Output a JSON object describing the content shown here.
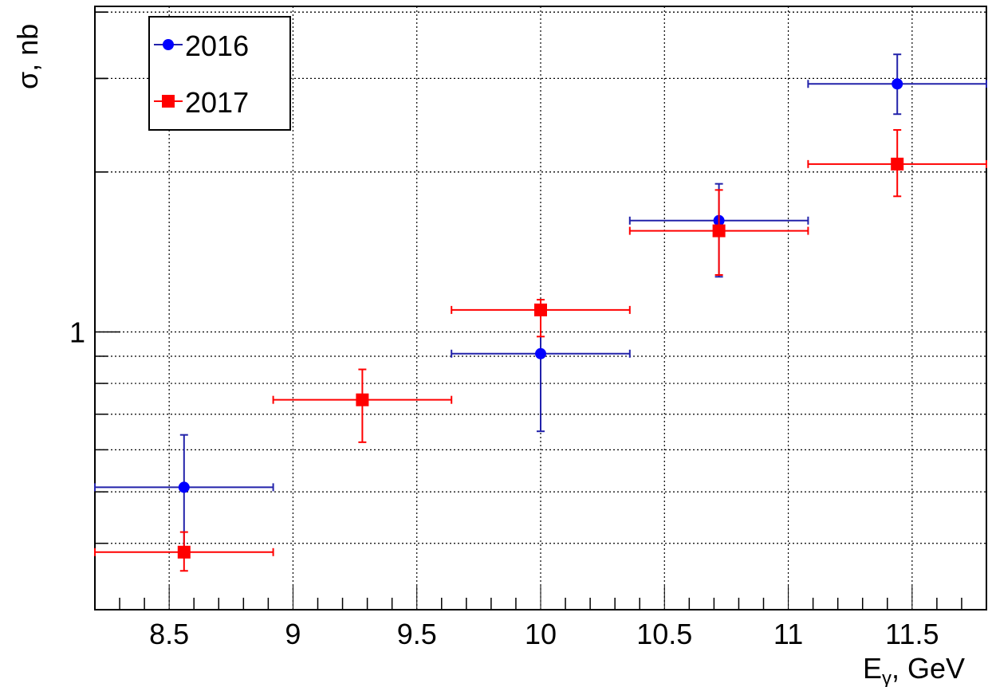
{
  "chart_data": {
    "type": "scatter",
    "title": "",
    "xlabel": "E",
    "xlabel_sub": "γ",
    "xlabel_suffix": ", GeV",
    "ylabel": "σ, nb",
    "xlim": [
      8.2,
      11.8
    ],
    "ylim": [
      0.3,
      4.1
    ],
    "yscale": "log",
    "grid": true,
    "legend_position": "top-left",
    "x_ticks": [
      "8.5",
      "9",
      "9.5",
      "10",
      "10.5",
      "11",
      "11.5"
    ],
    "y_ticks": [
      "1"
    ],
    "series": [
      {
        "name": "2016",
        "color": "#0000ff",
        "bar_color": "#2222aa",
        "marker": "circle",
        "points": [
          {
            "x": 8.56,
            "xlo": 8.2,
            "xhi": 8.92,
            "y": 0.51,
            "ylo": 0.39,
            "yhi": 0.64
          },
          {
            "x": 10.0,
            "xlo": 9.64,
            "xhi": 10.36,
            "y": 0.91,
            "ylo": 0.65,
            "yhi": 1.08
          },
          {
            "x": 10.72,
            "xlo": 10.36,
            "xhi": 11.08,
            "y": 1.62,
            "ylo": 1.27,
            "yhi": 1.9
          },
          {
            "x": 11.44,
            "xlo": 11.08,
            "xhi": 11.8,
            "y": 2.93,
            "ylo": 2.57,
            "yhi": 3.33
          }
        ]
      },
      {
        "name": "2017",
        "color": "#ff0000",
        "bar_color": "#ff0000",
        "marker": "square",
        "points": [
          {
            "x": 8.56,
            "xlo": 8.2,
            "xhi": 8.92,
            "y": 0.385,
            "ylo": 0.355,
            "yhi": 0.42
          },
          {
            "x": 9.28,
            "xlo": 8.92,
            "xhi": 9.64,
            "y": 0.745,
            "ylo": 0.62,
            "yhi": 0.85
          },
          {
            "x": 10.0,
            "xlo": 9.64,
            "xhi": 10.36,
            "y": 1.1,
            "ylo": 0.98,
            "yhi": 1.15
          },
          {
            "x": 10.72,
            "xlo": 10.36,
            "xhi": 11.08,
            "y": 1.55,
            "ylo": 1.28,
            "yhi": 1.85
          },
          {
            "x": 11.44,
            "xlo": 11.08,
            "xhi": 11.8,
            "y": 2.07,
            "ylo": 1.8,
            "yhi": 2.4
          }
        ]
      }
    ]
  }
}
